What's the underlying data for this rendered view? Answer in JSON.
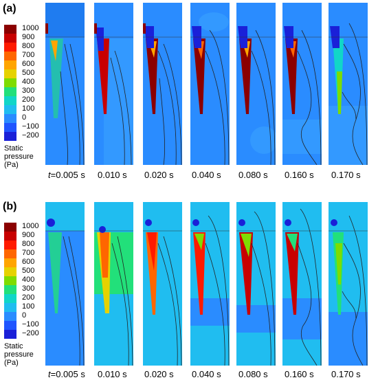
{
  "panels": [
    {
      "label": "(a)",
      "legend": {
        "ticks": [
          "1000",
          "900",
          "800",
          "700",
          "600",
          "500",
          "400",
          "300",
          "200",
          "100",
          "0",
          "−100",
          "−200"
        ],
        "title_lines": [
          "Static",
          "pressure",
          "(Pa)"
        ]
      },
      "times": [
        "t=0.005 s",
        "0.010 s",
        "0.020 s",
        "0.040 s",
        "0.080 s",
        "0.160 s",
        "0.170 s"
      ]
    },
    {
      "label": "(b)",
      "legend": {
        "ticks": [
          "1000",
          "900",
          "800",
          "700",
          "600",
          "500",
          "400",
          "300",
          "200",
          "100",
          "0",
          "−100",
          "−200"
        ],
        "title_lines": [
          "Static",
          "pressure",
          "(Pa)"
        ]
      },
      "times": [
        "t=0.005 s",
        "0.010 s",
        "0.020 s",
        "0.040 s",
        "0.080 s",
        "0.160 s",
        "0.170 s"
      ]
    }
  ],
  "colors": {
    "scale": [
      "#8b0000",
      "#c80000",
      "#ff1a00",
      "#ff6600",
      "#ffa500",
      "#e6d200",
      "#7fdc00",
      "#22e07a",
      "#11d6c8",
      "#20bdf0",
      "#2a8cff",
      "#1f55ff",
      "#1a20d8"
    ]
  }
}
